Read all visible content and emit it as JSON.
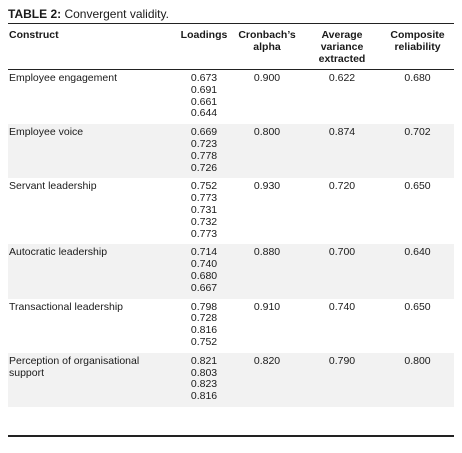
{
  "caption": {
    "label": "TABLE 2:",
    "text": " Convergent validity."
  },
  "headers": {
    "construct": "Construct",
    "loadings": "Loadings",
    "alpha": "Cronbach’s alpha",
    "ave": "Average variance extracted",
    "cr": "Composite reliability"
  },
  "rows": [
    {
      "construct": "Employee engagement",
      "loadings": [
        "0.673",
        "0.691",
        "0.661",
        "0.644"
      ],
      "alpha": "0.900",
      "ave": "0.622",
      "cr": "0.680"
    },
    {
      "construct": "Employee voice",
      "loadings": [
        "0.669",
        "0.723",
        "0.778",
        "0.726"
      ],
      "alpha": "0.800",
      "ave": "0.874",
      "cr": "0.702"
    },
    {
      "construct": "Servant leadership",
      "loadings": [
        "0.752",
        "0.773",
        "0.731",
        "0.732",
        "0.773"
      ],
      "alpha": "0.930",
      "ave": "0.720",
      "cr": "0.650"
    },
    {
      "construct": "Autocratic leadership",
      "loadings": [
        "0.714",
        "0.740",
        "0.680",
        "0.667"
      ],
      "alpha": "0.880",
      "ave": "0.700",
      "cr": "0.640"
    },
    {
      "construct": "Transactional leadership",
      "loadings": [
        "0.798",
        "0.728",
        "0.816",
        "0.752"
      ],
      "alpha": "0.910",
      "ave": "0.740",
      "cr": "0.650"
    },
    {
      "construct": "Perception of organisational support",
      "loadings": [
        "0.821",
        "0.803",
        "0.823",
        "0.816"
      ],
      "alpha": "0.820",
      "ave": "0.790",
      "cr": "0.800"
    }
  ],
  "colors": {
    "row_shade": "#f2f2f2",
    "rule": "#222222",
    "text": "#1a1a1a"
  }
}
